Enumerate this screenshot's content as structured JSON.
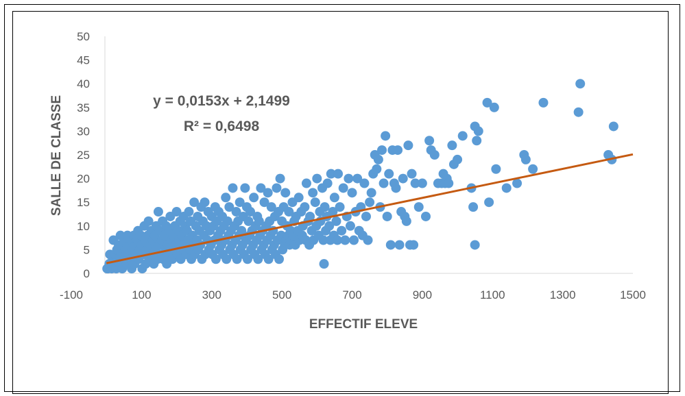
{
  "chart_data": {
    "type": "scatter",
    "xlabel": "EFFECTIF ELEVE",
    "ylabel": "SALLE DE CLASSE",
    "xlim": [
      -100,
      1500
    ],
    "ylim": [
      0,
      50
    ],
    "x_ticks": [
      -100,
      100,
      300,
      500,
      700,
      900,
      1100,
      1300,
      1500
    ],
    "y_ticks": [
      0,
      5,
      10,
      15,
      20,
      25,
      30,
      35,
      40,
      45,
      50
    ],
    "grid": false,
    "legend": "none",
    "colors": {
      "points": "#5B9BD5",
      "trendline": "#C55A11",
      "axis": "#D9D9D9",
      "text": "#595959"
    },
    "trendline": {
      "type": "linear",
      "slope": 0.0153,
      "intercept": 2.1499,
      "equation_label": "y = 0,0153x + 2,1499",
      "r2_label": "R² = 0,6498"
    },
    "series": [
      {
        "points": [
          [
            2,
            1
          ],
          [
            5,
            1
          ],
          [
            8,
            2
          ],
          [
            10,
            4
          ],
          [
            15,
            1
          ],
          [
            18,
            3
          ],
          [
            20,
            7
          ],
          [
            22,
            2
          ],
          [
            25,
            4
          ],
          [
            28,
            1
          ],
          [
            30,
            5
          ],
          [
            32,
            3
          ],
          [
            35,
            6
          ],
          [
            38,
            2
          ],
          [
            40,
            8
          ],
          [
            42,
            4
          ],
          [
            45,
            1
          ],
          [
            48,
            6
          ],
          [
            50,
            3
          ],
          [
            52,
            7
          ],
          [
            55,
            5
          ],
          [
            58,
            2
          ],
          [
            60,
            8
          ],
          [
            62,
            4
          ],
          [
            65,
            6
          ],
          [
            68,
            3
          ],
          [
            70,
            7
          ],
          [
            72,
            1
          ],
          [
            75,
            5
          ],
          [
            78,
            8
          ],
          [
            80,
            2
          ],
          [
            82,
            6
          ],
          [
            85,
            4
          ],
          [
            88,
            7
          ],
          [
            90,
            9
          ],
          [
            92,
            3
          ],
          [
            95,
            5
          ],
          [
            98,
            8
          ],
          [
            100,
            6
          ],
          [
            102,
            1
          ],
          [
            105,
            4
          ],
          [
            108,
            10
          ],
          [
            110,
            7
          ],
          [
            112,
            2
          ],
          [
            115,
            5
          ],
          [
            118,
            8
          ],
          [
            120,
            11
          ],
          [
            122,
            3
          ],
          [
            125,
            6
          ],
          [
            128,
            9
          ],
          [
            130,
            4
          ],
          [
            132,
            7
          ],
          [
            135,
            2
          ],
          [
            138,
            8
          ],
          [
            140,
            5
          ],
          [
            142,
            10
          ],
          [
            145,
            3
          ],
          [
            148,
            13
          ],
          [
            150,
            6
          ],
          [
            152,
            9
          ],
          [
            155,
            4
          ],
          [
            158,
            7
          ],
          [
            160,
            11
          ],
          [
            162,
            3
          ],
          [
            165,
            8
          ],
          [
            168,
            5
          ],
          [
            170,
            10
          ],
          [
            172,
            2
          ],
          [
            175,
            6
          ],
          [
            178,
            9
          ],
          [
            180,
            4
          ],
          [
            182,
            12
          ],
          [
            185,
            7
          ],
          [
            188,
            3
          ],
          [
            190,
            8
          ],
          [
            192,
            5
          ],
          [
            195,
            10
          ],
          [
            198,
            6
          ],
          [
            200,
            13
          ],
          [
            202,
            4
          ],
          [
            205,
            9
          ],
          [
            208,
            7
          ],
          [
            210,
            11
          ],
          [
            212,
            3
          ],
          [
            215,
            8
          ],
          [
            218,
            5
          ],
          [
            220,
            12
          ],
          [
            222,
            6
          ],
          [
            225,
            10
          ],
          [
            228,
            4
          ],
          [
            230,
            9
          ],
          [
            232,
            7
          ],
          [
            235,
            13
          ],
          [
            238,
            5
          ],
          [
            240,
            11
          ],
          [
            242,
            3
          ],
          [
            245,
            8
          ],
          [
            248,
            6
          ],
          [
            250,
            15
          ],
          [
            252,
            4
          ],
          [
            255,
            10
          ],
          [
            258,
            7
          ],
          [
            260,
            12
          ],
          [
            262,
            5
          ],
          [
            265,
            9
          ],
          [
            268,
            6
          ],
          [
            270,
            14
          ],
          [
            272,
            3
          ],
          [
            275,
            11
          ],
          [
            278,
            8
          ],
          [
            280,
            15
          ],
          [
            282,
            4
          ],
          [
            285,
            10
          ],
          [
            288,
            7
          ],
          [
            290,
            13
          ],
          [
            292,
            5
          ],
          [
            295,
            9
          ],
          [
            298,
            6
          ],
          [
            300,
            12
          ],
          [
            302,
            4
          ],
          [
            305,
            10
          ],
          [
            308,
            7
          ],
          [
            310,
            14
          ],
          [
            312,
            3
          ],
          [
            315,
            11
          ],
          [
            318,
            8
          ],
          [
            320,
            13
          ],
          [
            322,
            5
          ],
          [
            325,
            9
          ],
          [
            328,
            6
          ],
          [
            330,
            12
          ],
          [
            332,
            4
          ],
          [
            335,
            10
          ],
          [
            338,
            7
          ],
          [
            340,
            16
          ],
          [
            342,
            3
          ],
          [
            345,
            11
          ],
          [
            348,
            8
          ],
          [
            350,
            14
          ],
          [
            352,
            5
          ],
          [
            355,
            9
          ],
          [
            358,
            6
          ],
          [
            360,
            18
          ],
          [
            362,
            4
          ],
          [
            365,
            10
          ],
          [
            368,
            7
          ],
          [
            370,
            13
          ],
          [
            372,
            3
          ],
          [
            375,
            11
          ],
          [
            378,
            8
          ],
          [
            380,
            15
          ],
          [
            382,
            5
          ],
          [
            385,
            9
          ],
          [
            388,
            6
          ],
          [
            390,
            12
          ],
          [
            392,
            4
          ],
          [
            395,
            18
          ],
          [
            398,
            7
          ],
          [
            400,
            14
          ],
          [
            402,
            3
          ],
          [
            405,
            11
          ],
          [
            408,
            8
          ],
          [
            410,
            13
          ],
          [
            412,
            5
          ],
          [
            415,
            9
          ],
          [
            418,
            6
          ],
          [
            420,
            16
          ],
          [
            422,
            4
          ],
          [
            425,
            10
          ],
          [
            428,
            7
          ],
          [
            430,
            12
          ],
          [
            432,
            3
          ],
          [
            435,
            11
          ],
          [
            438,
            8
          ],
          [
            440,
            18
          ],
          [
            442,
            5
          ],
          [
            445,
            9
          ],
          [
            448,
            6
          ],
          [
            450,
            15
          ],
          [
            452,
            4
          ],
          [
            455,
            10
          ],
          [
            458,
            7
          ],
          [
            460,
            17
          ],
          [
            462,
            3
          ],
          [
            465,
            11
          ],
          [
            468,
            8
          ],
          [
            470,
            14
          ],
          [
            472,
            5
          ],
          [
            475,
            9
          ],
          [
            478,
            6
          ],
          [
            480,
            12
          ],
          [
            482,
            4
          ],
          [
            485,
            18
          ],
          [
            488,
            7
          ],
          [
            490,
            13
          ],
          [
            492,
            3
          ],
          [
            495,
            20
          ],
          [
            498,
            8
          ],
          [
            500,
            11
          ],
          [
            502,
            5
          ],
          [
            505,
            14
          ],
          [
            508,
            6
          ],
          [
            510,
            17
          ],
          [
            512,
            7
          ],
          [
            515,
            10
          ],
          [
            518,
            8
          ],
          [
            520,
            13
          ],
          [
            522,
            6
          ],
          [
            525,
            9
          ],
          [
            528,
            7
          ],
          [
            530,
            15
          ],
          [
            532,
            8
          ],
          [
            535,
            11
          ],
          [
            538,
            6
          ],
          [
            540,
            12
          ],
          [
            545,
            9
          ],
          [
            548,
            16
          ],
          [
            550,
            7
          ],
          [
            555,
            13
          ],
          [
            558,
            8
          ],
          [
            560,
            10
          ],
          [
            565,
            14
          ],
          [
            568,
            7
          ],
          [
            570,
            19
          ],
          [
            575,
            11
          ],
          [
            578,
            6
          ],
          [
            580,
            12
          ],
          [
            585,
            9
          ],
          [
            588,
            17
          ],
          [
            590,
            7
          ],
          [
            595,
            15
          ],
          [
            598,
            10
          ],
          [
            600,
            20
          ],
          [
            605,
            8
          ],
          [
            608,
            13
          ],
          [
            610,
            11
          ],
          [
            615,
            18
          ],
          [
            618,
            7
          ],
          [
            620,
            2
          ],
          [
            622,
            14
          ],
          [
            625,
            9
          ],
          [
            628,
            12
          ],
          [
            630,
            19
          ],
          [
            635,
            10
          ],
          [
            638,
            7
          ],
          [
            640,
            21
          ],
          [
            645,
            13
          ],
          [
            648,
            8
          ],
          [
            650,
            16
          ],
          [
            655,
            11
          ],
          [
            658,
            7
          ],
          [
            660,
            21
          ],
          [
            665,
            14
          ],
          [
            670,
            9
          ],
          [
            675,
            18
          ],
          [
            680,
            7
          ],
          [
            685,
            12
          ],
          [
            690,
            20
          ],
          [
            695,
            10
          ],
          [
            700,
            17
          ],
          [
            705,
            7
          ],
          [
            710,
            13
          ],
          [
            715,
            20
          ],
          [
            720,
            9
          ],
          [
            725,
            14
          ],
          [
            730,
            8
          ],
          [
            735,
            19
          ],
          [
            740,
            12
          ],
          [
            745,
            7
          ],
          [
            750,
            15
          ],
          [
            755,
            17
          ],
          [
            760,
            21
          ],
          [
            765,
            25
          ],
          [
            770,
            22
          ],
          [
            775,
            24
          ],
          [
            780,
            14
          ],
          [
            785,
            26
          ],
          [
            790,
            19
          ],
          [
            795,
            29
          ],
          [
            800,
            12
          ],
          [
            805,
            21
          ],
          [
            810,
            6
          ],
          [
            815,
            26
          ],
          [
            820,
            19
          ],
          [
            825,
            18
          ],
          [
            830,
            26
          ],
          [
            835,
            6
          ],
          [
            840,
            13
          ],
          [
            845,
            20
          ],
          [
            850,
            12
          ],
          [
            855,
            11
          ],
          [
            860,
            27
          ],
          [
            865,
            6
          ],
          [
            870,
            21
          ],
          [
            875,
            6
          ],
          [
            880,
            19
          ],
          [
            890,
            14
          ],
          [
            900,
            19
          ],
          [
            910,
            12
          ],
          [
            920,
            28
          ],
          [
            925,
            26
          ],
          [
            935,
            25
          ],
          [
            945,
            19
          ],
          [
            955,
            19
          ],
          [
            960,
            21
          ],
          [
            965,
            19
          ],
          [
            970,
            20
          ],
          [
            975,
            19
          ],
          [
            985,
            27
          ],
          [
            990,
            23
          ],
          [
            1000,
            24
          ],
          [
            1015,
            29
          ],
          [
            1040,
            18
          ],
          [
            1045,
            14
          ],
          [
            1050,
            6
          ],
          [
            1050,
            31
          ],
          [
            1055,
            28
          ],
          [
            1060,
            30
          ],
          [
            1085,
            36
          ],
          [
            1090,
            15
          ],
          [
            1105,
            35
          ],
          [
            1110,
            22
          ],
          [
            1140,
            18
          ],
          [
            1170,
            19
          ],
          [
            1190,
            25
          ],
          [
            1195,
            24
          ],
          [
            1215,
            22
          ],
          [
            1245,
            36
          ],
          [
            1345,
            34
          ],
          [
            1350,
            40
          ],
          [
            1430,
            25
          ],
          [
            1440,
            24
          ],
          [
            1445,
            31
          ]
        ]
      }
    ]
  }
}
